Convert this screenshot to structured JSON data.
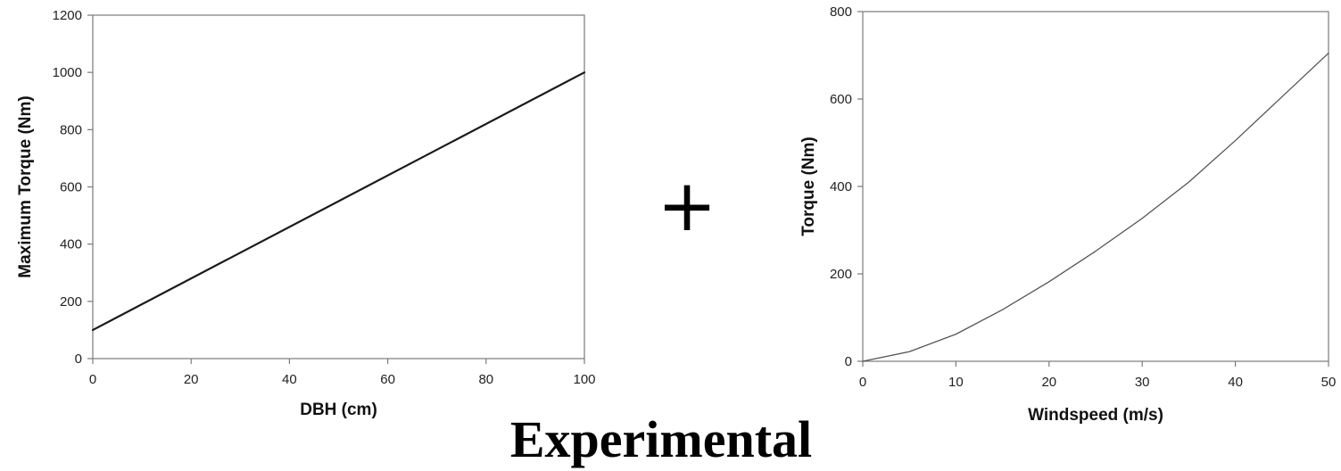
{
  "chart_data": [
    {
      "type": "line",
      "title": "",
      "xlabel": "DBH (cm)",
      "ylabel": "Maximum Torque (Nm)",
      "xlim": [
        0,
        100
      ],
      "ylim": [
        0,
        1200
      ],
      "xticks": [
        0,
        20,
        40,
        60,
        80,
        100
      ],
      "yticks": [
        0,
        200,
        400,
        600,
        800,
        1000,
        1200
      ],
      "grid": false,
      "series": [
        {
          "x": [
            0,
            100
          ],
          "y": [
            100,
            1000
          ]
        }
      ]
    },
    {
      "type": "line",
      "title": "",
      "xlabel": "Windspeed (m/s)",
      "ylabel": "Torque (Nm)",
      "xlim": [
        0,
        50
      ],
      "ylim": [
        0,
        800
      ],
      "xticks": [
        0,
        10,
        20,
        30,
        40,
        50
      ],
      "yticks": [
        0,
        200,
        400,
        600,
        800
      ],
      "grid": false,
      "series": [
        {
          "x": [
            0,
            5,
            10,
            15,
            20,
            25,
            30,
            35,
            40,
            45,
            50
          ],
          "y": [
            0,
            22,
            62,
            118,
            182,
            252,
            327,
            410,
            505,
            605,
            705
          ]
        }
      ]
    }
  ],
  "connector": {
    "symbol": "+"
  },
  "caption": {
    "text": "Experimental"
  }
}
